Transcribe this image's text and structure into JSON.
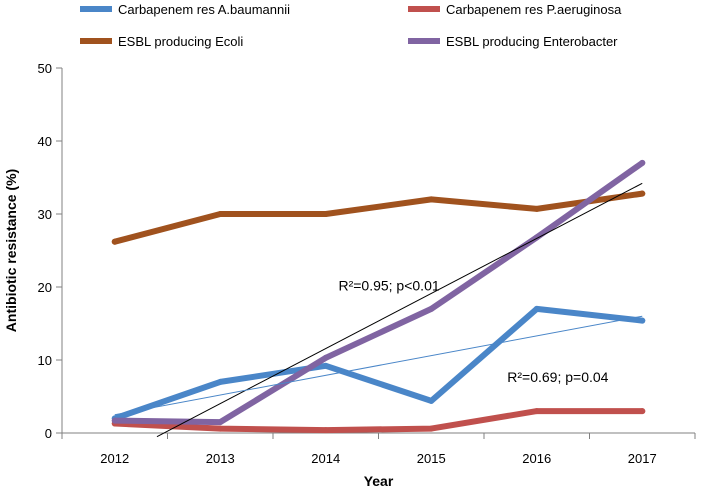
{
  "chart_data": {
    "type": "line",
    "title": "",
    "xlabel": "Year",
    "ylabel": "Antibiotic resistance (%)",
    "categories": [
      "2012",
      "2013",
      "2014",
      "2015",
      "2016",
      "2017"
    ],
    "ylim": [
      0,
      50
    ],
    "yticks": [
      0,
      10,
      20,
      30,
      40,
      50
    ],
    "grid": false,
    "legend_position": "top",
    "series": [
      {
        "name": "Carbapenem res A.baumannii",
        "color": "#4a86c8",
        "values": [
          2,
          7,
          9.2,
          4.4,
          17,
          15.4
        ]
      },
      {
        "name": "Carbapenem res P.aeruginosa",
        "color": "#c0504d",
        "values": [
          1.3,
          0.6,
          0.4,
          0.6,
          3,
          3
        ]
      },
      {
        "name": "ESBL producing Ecoli",
        "color": "#a0521e",
        "values": [
          26.2,
          30,
          30,
          32,
          30.7,
          32.8
        ]
      },
      {
        "name": "ESBL producing Enterobacter",
        "color": "#8064a2",
        "values": [
          1.7,
          1.5,
          10.3,
          17,
          26.8,
          37
        ]
      }
    ],
    "trendlines": [
      {
        "series": "ESBL producing Enterobacter",
        "color": "#000000",
        "start": [
          2012.4,
          -0.5
        ],
        "end": [
          2017,
          34.2
        ]
      },
      {
        "series": "Carbapenem res A.baumannii",
        "color": "#4a86c8",
        "start": [
          2012,
          2.5
        ],
        "end": [
          2017,
          16
        ]
      }
    ],
    "annotations": [
      {
        "text": "R²=0.95; p<0.01",
        "x": 2014.6,
        "y": 19.5
      },
      {
        "text": "R²=0.69; p=0.04",
        "x": 2016.2,
        "y": 7
      }
    ]
  }
}
